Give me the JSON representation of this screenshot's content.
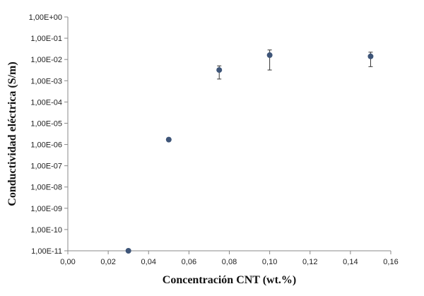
{
  "chart_data": {
    "type": "scatter",
    "xlabel": "Concentración CNT (wt.%)",
    "ylabel": "Conductividad eléctrica (S/m)",
    "xlim": [
      0,
      0.16
    ],
    "ylim": [
      1e-11,
      1
    ],
    "yscale": "log",
    "grid": false,
    "legend": "none",
    "x_ticks": [
      "0,00",
      "0,02",
      "0,04",
      "0,06",
      "0,08",
      "0,10",
      "0,12",
      "0,14",
      "0,16"
    ],
    "y_ticks": [
      "1,00E-11",
      "1,00E-10",
      "1,00E-09",
      "1,00E-08",
      "1,00E-07",
      "1,00E-06",
      "1,00E-05",
      "1,00E-04",
      "1,00E-03",
      "1,00E-02",
      "1,00E-01",
      "1,00E+00"
    ],
    "marker_color": "#3e5578",
    "points": [
      {
        "x": 0.03,
        "y": 1e-11
      },
      {
        "x": 0.05,
        "y": 1.7e-06
      },
      {
        "x": 0.075,
        "y": 0.0032,
        "y_low": 0.0012,
        "y_high": 0.005
      },
      {
        "x": 0.1,
        "y": 0.016,
        "y_low": 0.0032,
        "y_high": 0.028
      },
      {
        "x": 0.15,
        "y": 0.014,
        "y_low": 0.0046,
        "y_high": 0.022
      }
    ]
  }
}
